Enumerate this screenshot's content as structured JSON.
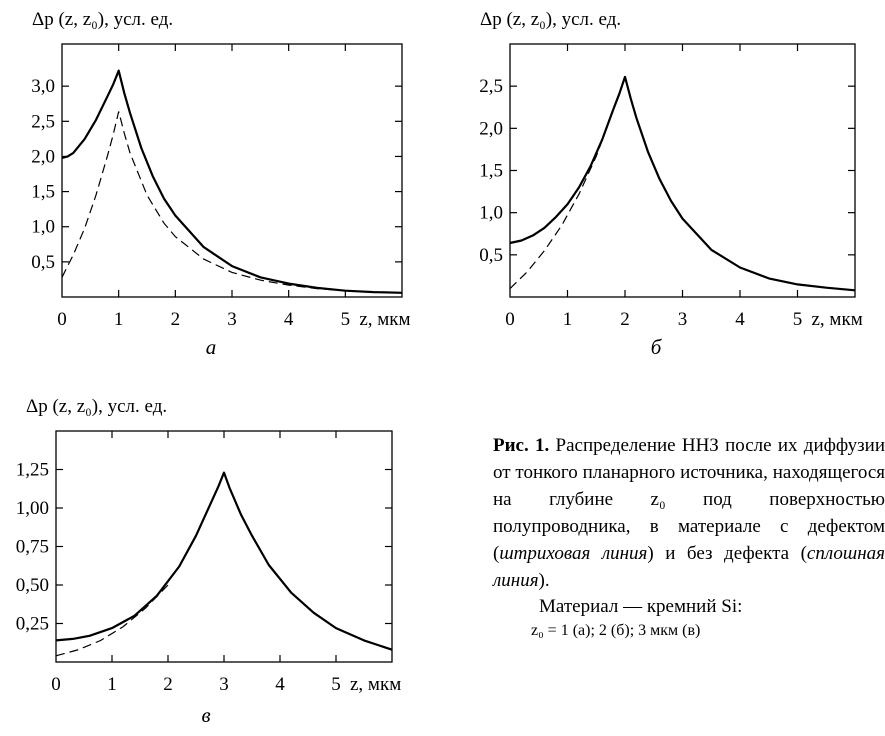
{
  "chart_data": [
    {
      "type": "line",
      "panel_label": "а",
      "ylabel": "Δp (z, z₀), усл. ед.",
      "xlabel": "z, мкм",
      "xlim": [
        0,
        6
      ],
      "ylim": [
        0,
        3.6
      ],
      "xticks": [
        "0",
        "1",
        "2",
        "3",
        "4",
        "5"
      ],
      "yticks": [
        {
          "value": 0.5,
          "label": "0,5"
        },
        {
          "value": 1.0,
          "label": "1,0"
        },
        {
          "value": 1.5,
          "label": "1,5"
        },
        {
          "value": 2.0,
          "label": "2,0"
        },
        {
          "value": 2.5,
          "label": "2,5"
        },
        {
          "value": 3.0,
          "label": "3,0"
        }
      ],
      "series": [
        {
          "style": "dashed",
          "x": [
            0,
            0.2,
            0.4,
            0.6,
            0.8,
            0.9,
            1.0,
            1.1,
            1.2,
            1.5,
            1.8,
            2.0,
            2.5,
            3.0,
            3.5,
            4.0,
            4.5,
            5.0,
            5.5,
            6.0
          ],
          "y": [
            0.28,
            0.6,
            0.98,
            1.45,
            2.0,
            2.3,
            2.64,
            2.33,
            2.05,
            1.45,
            1.05,
            0.86,
            0.54,
            0.35,
            0.24,
            0.17,
            0.12,
            0.09,
            0.07,
            0.06
          ]
        },
        {
          "style": "solid",
          "x": [
            0,
            0.1,
            0.2,
            0.4,
            0.6,
            0.8,
            0.9,
            1.0,
            1.1,
            1.2,
            1.4,
            1.6,
            1.8,
            2.0,
            2.5,
            3.0,
            3.5,
            4.0,
            4.5,
            5.0,
            5.5,
            6.0
          ],
          "y": [
            1.98,
            2.0,
            2.05,
            2.25,
            2.52,
            2.85,
            3.02,
            3.22,
            2.9,
            2.62,
            2.12,
            1.72,
            1.4,
            1.16,
            0.71,
            0.44,
            0.28,
            0.19,
            0.13,
            0.09,
            0.07,
            0.06
          ]
        }
      ]
    },
    {
      "type": "line",
      "panel_label": "б",
      "ylabel": "Δp (z, z₀), усл. ед.",
      "xlabel": "z, мкм",
      "xlim": [
        0,
        6
      ],
      "ylim": [
        0,
        3.0
      ],
      "xticks": [
        "0",
        "1",
        "2",
        "3",
        "4",
        "5"
      ],
      "yticks": [
        {
          "value": 0.5,
          "label": "0,5"
        },
        {
          "value": 1.0,
          "label": "1,0"
        },
        {
          "value": 1.5,
          "label": "1,5"
        },
        {
          "value": 2.0,
          "label": "2,0"
        },
        {
          "value": 2.5,
          "label": "2,5"
        }
      ],
      "series": [
        {
          "style": "dashed",
          "x": [
            0,
            0.3,
            0.6,
            0.9,
            1.2,
            1.5,
            1.7,
            1.85,
            2.0
          ],
          "y": [
            0.1,
            0.3,
            0.55,
            0.85,
            1.22,
            1.67,
            2.04,
            2.32,
            2.61
          ]
        },
        {
          "style": "solid",
          "x": [
            0,
            0.2,
            0.4,
            0.6,
            0.8,
            1.0,
            1.2,
            1.4,
            1.6,
            1.8,
            1.9,
            2.0,
            2.1,
            2.2,
            2.4,
            2.6,
            2.8,
            3.0,
            3.5,
            4.0,
            4.5,
            5.0,
            5.5,
            6.0
          ],
          "y": [
            0.64,
            0.67,
            0.73,
            0.82,
            0.95,
            1.1,
            1.3,
            1.55,
            1.86,
            2.23,
            2.41,
            2.61,
            2.35,
            2.12,
            1.72,
            1.4,
            1.14,
            0.93,
            0.56,
            0.35,
            0.22,
            0.15,
            0.11,
            0.08
          ]
        }
      ]
    },
    {
      "type": "line",
      "panel_label": "в",
      "ylabel": "Δp (z, z₀), усл. ед.",
      "xlabel": "z, мкм",
      "xlim": [
        0,
        6
      ],
      "ylim": [
        0,
        1.5
      ],
      "xticks": [
        "0",
        "1",
        "2",
        "3",
        "4",
        "5"
      ],
      "yticks": [
        {
          "value": 0.25,
          "label": "0,25"
        },
        {
          "value": 0.5,
          "label": "0,50"
        },
        {
          "value": 0.75,
          "label": "0,75"
        },
        {
          "value": 1.0,
          "label": "1,00"
        },
        {
          "value": 1.25,
          "label": "1,25"
        }
      ],
      "series": [
        {
          "style": "dashed",
          "x": [
            0,
            0.4,
            0.8,
            1.2,
            1.6,
            2.0
          ],
          "y": [
            0.04,
            0.08,
            0.14,
            0.23,
            0.35,
            0.5
          ]
        },
        {
          "style": "solid",
          "x": [
            0,
            0.3,
            0.6,
            1.0,
            1.4,
            1.8,
            2.2,
            2.5,
            2.7,
            2.9,
            3.0,
            3.1,
            3.3,
            3.5,
            3.8,
            4.2,
            4.6,
            5.0,
            5.5,
            6.0
          ],
          "y": [
            0.14,
            0.15,
            0.17,
            0.22,
            0.3,
            0.43,
            0.62,
            0.82,
            0.98,
            1.14,
            1.23,
            1.13,
            0.96,
            0.82,
            0.63,
            0.45,
            0.32,
            0.22,
            0.14,
            0.08
          ]
        }
      ]
    }
  ],
  "caption": {
    "head": "Рис. 1.",
    "text_1": " Распределение ННЗ после их диффузии от тонкого планарного источника, находящегося на глубине z₀ под поверхностью полупроводника, в материале с дефектом (",
    "dashed_label": "штриховая линия",
    "text_2": ") и без дефекта (",
    "solid_label": "сплошная линия",
    "text_3": ").",
    "material": "Материал — кремний Si:",
    "values": "z₀ = 1 (а); 2 (б); 3 мкм (в)"
  }
}
